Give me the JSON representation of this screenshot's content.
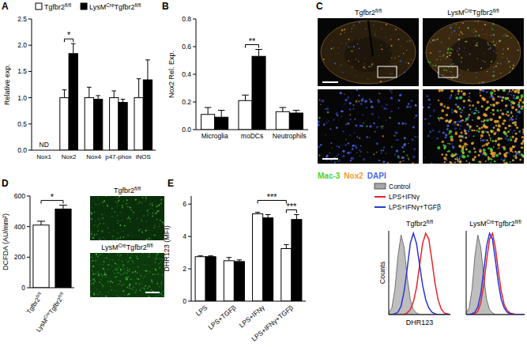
{
  "chart_data": [
    {
      "type": "bar",
      "title": "A",
      "y_label": "Relative exp.",
      "categories": [
        "Nox1",
        "Nox2",
        "Nox4",
        "p47-phox",
        "iNOS"
      ],
      "series": [
        {
          "name": "Tgfbr2fl/fl",
          "color": "#ffffff",
          "values": [
            null,
            1.0,
            1.0,
            1.0,
            1.0
          ],
          "errors": [
            null,
            0.15,
            0.2,
            0.13,
            0.36
          ]
        },
        {
          "name": "LysMCreTgfbr2fl/fl",
          "color": "#000000",
          "values": [
            null,
            1.84,
            0.97,
            0.91,
            1.34
          ],
          "errors": [
            null,
            0.19,
            0.07,
            0.06,
            0.38
          ]
        }
      ],
      "ylim": [
        0,
        2.5
      ],
      "yticks": [
        {
          "value": 0,
          "label": "0.0"
        },
        {
          "value": 0.5,
          "label": "0.5"
        },
        {
          "value": 1,
          "label": "1.0"
        },
        {
          "value": 1.5,
          "label": "1.5"
        },
        {
          "value": 2,
          "label": "2.0"
        },
        {
          "value": 2.5,
          "label": "2.5"
        }
      ],
      "legend": "top-left",
      "annotations": [
        {
          "text": "ND",
          "category": 0
        },
        {
          "text": "*",
          "bracket": [
            [
              1,
              0
            ],
            [
              1,
              1
            ]
          ]
        }
      ]
    },
    {
      "type": "bar",
      "title": "B",
      "y_label": "Nox2 Rel. Exp.",
      "categories": [
        "Microglia",
        "moDCs",
        "Neutrophils"
      ],
      "series": [
        {
          "color": "#ffffff",
          "values": [
            0.11,
            0.21,
            0.13
          ],
          "errors": [
            0.05,
            0.04,
            0.03
          ]
        },
        {
          "color": "#000000",
          "values": [
            0.09,
            0.53,
            0.12
          ],
          "errors": [
            0.05,
            0.05,
            0.02
          ]
        }
      ],
      "ylim": [
        0,
        0.8
      ],
      "yticks": [
        {
          "value": 0,
          "label": "0.0"
        },
        {
          "value": 0.2,
          "label": "0.2"
        },
        {
          "value": 0.4,
          "label": "0.4"
        },
        {
          "value": 0.6,
          "label": "0.6"
        },
        {
          "value": 0.8,
          "label": "0.8"
        }
      ],
      "annotations": [
        {
          "text": "**",
          "bracket": [
            [
              1,
              0
            ],
            [
              1,
              1
            ]
          ]
        }
      ]
    },
    {
      "type": "bar",
      "title": "D",
      "y_label": "DCFDA (AU/mm²)",
      "categories": [
        "Tgfbr2fl/fl",
        "LysMCreTgfbr2fl/fl"
      ],
      "values": [
        410,
        515
      ],
      "errors": [
        25,
        25
      ],
      "colors": [
        "#ffffff",
        "#000000"
      ],
      "ylim": [
        0,
        600
      ],
      "yticks": [
        0,
        200,
        400,
        600
      ],
      "annotations": [
        {
          "text": "*",
          "bracket": [
            [
              0,
              0
            ],
            [
              1,
              0
            ]
          ]
        }
      ]
    },
    {
      "type": "bar",
      "title": "E",
      "y_label": "DHR123 (MFI)",
      "categories": [
        "LPS",
        "LPS+TGFβ",
        "LPS+IFNγ",
        "LPS+IFNγ+TGFβ"
      ],
      "series": [
        {
          "color": "#ffffff",
          "values": [
            2.75,
            2.5,
            5.4,
            3.25
          ],
          "errors": [
            0.05,
            0.2,
            0.1,
            0.25
          ]
        },
        {
          "color": "#000000",
          "values": [
            2.75,
            2.45,
            5.15,
            5.05
          ],
          "errors": [
            0.05,
            0.1,
            0.2,
            0.3
          ]
        }
      ],
      "ylim": [
        0,
        6.5
      ],
      "yticks": [
        0,
        2,
        4,
        6
      ],
      "annotations": [
        {
          "text": "***",
          "bracket": [
            [
              2,
              0
            ],
            [
              3,
              0
            ]
          ]
        },
        {
          "text": "***",
          "bracket": [
            [
              3,
              0
            ],
            [
              3,
              1
            ]
          ]
        }
      ]
    },
    {
      "type": "line",
      "title": "Tgfbr2fl/fl",
      "x_label": "DHR123",
      "y_label": "Counts",
      "x": [
        0,
        5,
        10,
        15,
        20,
        25,
        30,
        35,
        40,
        45,
        50,
        55,
        60,
        65,
        70,
        75,
        80,
        85,
        90,
        95,
        100
      ],
      "series": [
        {
          "name": "Control",
          "type": "area",
          "color": "#a8a8a8",
          "values": [
            2,
            8,
            30,
            70,
            95,
            80,
            45,
            18,
            6,
            2,
            0,
            0,
            0,
            0,
            0,
            0,
            0,
            0,
            0,
            0,
            0
          ]
        },
        {
          "name": "LPS+IFNγ",
          "type": "line",
          "color": "#e8232a",
          "values": [
            0,
            0,
            0,
            0,
            0,
            0,
            2,
            6,
            15,
            32,
            58,
            85,
            97,
            90,
            65,
            38,
            18,
            7,
            2,
            1,
            0
          ]
        },
        {
          "name": "LPS+IFNγ+TGFβ",
          "type": "line",
          "color": "#2a36d6",
          "values": [
            0,
            0,
            1,
            3,
            10,
            28,
            55,
            85,
            97,
            85,
            60,
            35,
            18,
            8,
            3,
            1,
            0,
            0,
            0,
            0,
            0
          ]
        }
      ],
      "xlim": [
        0,
        100
      ],
      "ylim": [
        0,
        100
      ],
      "tick_labels": false,
      "legend": "top-left"
    },
    {
      "type": "line",
      "title": "LysMCreTgfbr2fl/fl",
      "x": [
        0,
        5,
        10,
        15,
        20,
        25,
        30,
        35,
        40,
        45,
        50,
        55,
        60,
        65,
        70,
        75,
        80,
        85,
        90,
        95,
        100
      ],
      "series": [
        {
          "type": "area",
          "color": "#a8a8a8",
          "values": [
            2,
            8,
            30,
            70,
            95,
            80,
            45,
            18,
            6,
            2,
            0,
            0,
            0,
            0,
            0,
            0,
            0,
            0,
            0,
            0,
            0
          ]
        },
        {
          "type": "line",
          "color": "#e8232a",
          "values": [
            0,
            0,
            0,
            1,
            4,
            14,
            35,
            65,
            90,
            97,
            80,
            52,
            28,
            12,
            5,
            2,
            1,
            0,
            0,
            0,
            0
          ]
        },
        {
          "type": "line",
          "color": "#2a36d6",
          "values": [
            0,
            0,
            1,
            3,
            9,
            25,
            52,
            82,
            97,
            90,
            65,
            38,
            18,
            8,
            3,
            1,
            0,
            0,
            0,
            0,
            0
          ]
        }
      ],
      "xlim": [
        0,
        100
      ],
      "ylim": [
        0,
        100
      ],
      "tick_labels": false
    }
  ],
  "micrographs": {
    "C": {
      "title": "C",
      "labels": [
        "Tgfbr2fl/fl",
        "LysMCreTgfbr2fl/fl"
      ],
      "stains": [
        {
          "text": "Mac-3",
          "color": "#3fd43f"
        },
        {
          "text": "Nox2",
          "color": "#f0a030"
        },
        {
          "text": "DAPI",
          "color": "#4a66f0"
        }
      ]
    },
    "D": {
      "labels": [
        "Tgfbr2fl/fl",
        "LysMCreTgfbr2fl/fl"
      ]
    }
  }
}
